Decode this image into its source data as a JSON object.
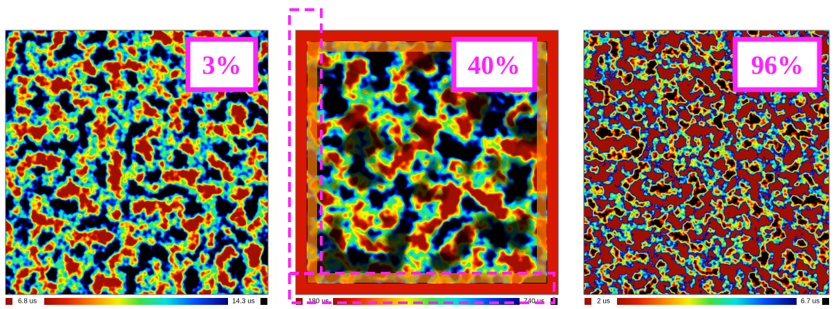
{
  "panels": [
    {
      "label": "3%",
      "scale": {
        "min": "6.8 us",
        "max": "14.3 us"
      }
    },
    {
      "label": "40%",
      "scale": {
        "min": "180 us",
        "max": "740 us"
      }
    },
    {
      "label": "96%",
      "scale": {
        "min": "2 us",
        "max": "6.7 us"
      }
    }
  ]
}
